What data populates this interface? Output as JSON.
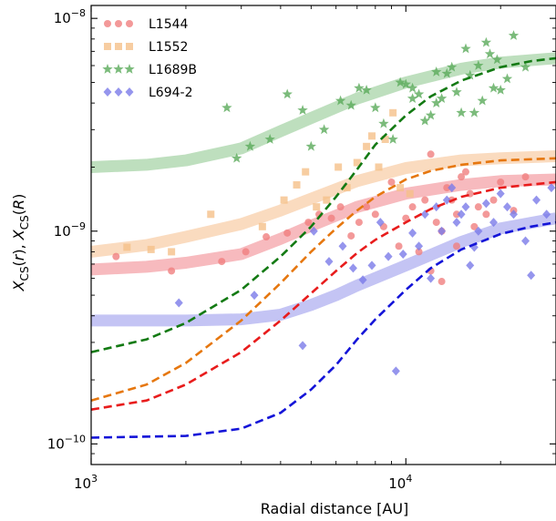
{
  "chart_data": {
    "type": "scatter",
    "xlabel": "Radial distance [AU]",
    "ylabel": "X_CS(r), X_CS(R)",
    "xscale": "log",
    "yscale": "log",
    "xlim": [
      1000,
      30000
    ],
    "ylim": [
      8e-11,
      1.15e-08
    ],
    "xticks": [
      {
        "value": 1000,
        "base": "10",
        "exp": "3"
      },
      {
        "value": 10000,
        "base": "10",
        "exp": "4"
      }
    ],
    "yticks": [
      {
        "value": 1e-10,
        "base": "10",
        "exp": "−10"
      },
      {
        "value": 1e-09,
        "base": "10",
        "exp": "−9"
      },
      {
        "value": 1e-08,
        "base": "10",
        "exp": "−8"
      }
    ],
    "grid": false,
    "legend_position": "top-left",
    "series": [
      {
        "name": "L1544",
        "color": "#f08080",
        "marker": "circle",
        "points": [
          [
            1200,
            7.6e-10
          ],
          [
            1800,
            6.5e-10
          ],
          [
            2600,
            7.2e-10
          ],
          [
            3100,
            8e-10
          ],
          [
            3600,
            9.4e-10
          ],
          [
            4200,
            9.8e-10
          ],
          [
            4900,
            1.1e-09
          ],
          [
            5300,
            1.2e-09
          ],
          [
            5800,
            1.15e-09
          ],
          [
            6200,
            1.3e-09
          ],
          [
            6700,
            9.5e-10
          ],
          [
            7100,
            1.1e-09
          ],
          [
            7500,
            1.3e-09
          ],
          [
            8000,
            1.2e-09
          ],
          [
            8500,
            1.05e-09
          ],
          [
            9000,
            1.7e-09
          ],
          [
            9500,
            8.5e-10
          ],
          [
            10000,
            1.15e-09
          ],
          [
            10500,
            1.3e-09
          ],
          [
            11000,
            8e-10
          ],
          [
            11500,
            1.4e-09
          ],
          [
            12000,
            2.3e-09
          ],
          [
            12500,
            1.1e-09
          ],
          [
            13000,
            1e-09
          ],
          [
            13500,
            1.6e-09
          ],
          [
            14000,
            1.4e-09
          ],
          [
            14500,
            8.5e-10
          ],
          [
            15000,
            1.8e-09
          ],
          [
            15500,
            1.9e-09
          ],
          [
            16000,
            1.5e-09
          ],
          [
            17000,
            1.3e-09
          ],
          [
            18000,
            1.2e-09
          ],
          [
            19000,
            1.4e-09
          ],
          [
            20000,
            1.7e-09
          ],
          [
            22000,
            1.25e-09
          ],
          [
            13000,
            5.8e-10
          ],
          [
            24000,
            1.8e-09
          ],
          [
            12000,
            6.5e-10
          ],
          [
            14500,
            1.2e-09
          ],
          [
            16500,
            1.05e-09
          ]
        ]
      },
      {
        "name": "L1552",
        "color": "#f5c08a",
        "marker": "square",
        "points": [
          [
            1300,
            8.4e-10
          ],
          [
            1550,
            8.2e-10
          ],
          [
            1800,
            8e-10
          ],
          [
            2400,
            1.2e-09
          ],
          [
            3500,
            1.05e-09
          ],
          [
            4100,
            1.4e-09
          ],
          [
            4500,
            1.65e-09
          ],
          [
            4800,
            1.9e-09
          ],
          [
            5200,
            1.3e-09
          ],
          [
            5600,
            1.4e-09
          ],
          [
            6100,
            2e-09
          ],
          [
            6500,
            1.6e-09
          ],
          [
            7000,
            2.1e-09
          ],
          [
            7500,
            2.5e-09
          ],
          [
            7800,
            2.8e-09
          ],
          [
            8200,
            2e-09
          ],
          [
            8600,
            2.7e-09
          ],
          [
            9100,
            3.6e-09
          ],
          [
            9600,
            1.6e-09
          ],
          [
            10300,
            1.5e-09
          ]
        ]
      },
      {
        "name": "L1689B",
        "color": "#5aaa5a",
        "marker": "star",
        "points": [
          [
            2700,
            3.8e-09
          ],
          [
            2900,
            2.2e-09
          ],
          [
            3200,
            2.5e-09
          ],
          [
            3700,
            2.7e-09
          ],
          [
            4200,
            4.4e-09
          ],
          [
            4700,
            3.7e-09
          ],
          [
            5000,
            2.5e-09
          ],
          [
            5500,
            3e-09
          ],
          [
            6200,
            4.1e-09
          ],
          [
            6700,
            3.9e-09
          ],
          [
            7100,
            4.7e-09
          ],
          [
            7500,
            4.6e-09
          ],
          [
            8000,
            3.8e-09
          ],
          [
            8500,
            3.2e-09
          ],
          [
            9100,
            2.7e-09
          ],
          [
            9600,
            5e-09
          ],
          [
            10000,
            4.9e-09
          ],
          [
            10500,
            4.7e-09
          ],
          [
            11000,
            4.4e-09
          ],
          [
            11500,
            3.3e-09
          ],
          [
            12000,
            3.5e-09
          ],
          [
            12500,
            4e-09
          ],
          [
            13000,
            4.2e-09
          ],
          [
            13500,
            5.5e-09
          ],
          [
            14000,
            5.9e-09
          ],
          [
            14500,
            4.5e-09
          ],
          [
            15000,
            3.6e-09
          ],
          [
            15500,
            7.2e-09
          ],
          [
            16000,
            5.4e-09
          ],
          [
            16500,
            3.6e-09
          ],
          [
            17000,
            6e-09
          ],
          [
            17500,
            4.1e-09
          ],
          [
            18000,
            7.7e-09
          ],
          [
            18500,
            6.8e-09
          ],
          [
            19000,
            4.7e-09
          ],
          [
            19500,
            6.4e-09
          ],
          [
            20000,
            4.6e-09
          ],
          [
            21000,
            5.2e-09
          ],
          [
            22000,
            8.3e-09
          ],
          [
            24000,
            5.9e-09
          ],
          [
            10500,
            4.2e-09
          ],
          [
            12500,
            5.6e-09
          ]
        ]
      },
      {
        "name": "L694-2",
        "color": "#7b7be8",
        "marker": "diamond",
        "points": [
          [
            1900,
            4.6e-10
          ],
          [
            3300,
            5e-10
          ],
          [
            4700,
            2.9e-10
          ],
          [
            5100,
            1e-09
          ],
          [
            5700,
            7.2e-10
          ],
          [
            6300,
            8.5e-10
          ],
          [
            6800,
            6.7e-10
          ],
          [
            7300,
            5.9e-10
          ],
          [
            7800,
            6.9e-10
          ],
          [
            8300,
            1.1e-09
          ],
          [
            8800,
            7.6e-10
          ],
          [
            9300,
            2.2e-10
          ],
          [
            9800,
            7.8e-10
          ],
          [
            10500,
            9.8e-10
          ],
          [
            11000,
            8.5e-10
          ],
          [
            11500,
            1.2e-09
          ],
          [
            12000,
            6e-10
          ],
          [
            12500,
            1.3e-09
          ],
          [
            13000,
            1e-09
          ],
          [
            13500,
            1.4e-09
          ],
          [
            14000,
            1.6e-09
          ],
          [
            14500,
            1.1e-09
          ],
          [
            15000,
            1.2e-09
          ],
          [
            15500,
            1.3e-09
          ],
          [
            16000,
            6.9e-10
          ],
          [
            16500,
            8.4e-10
          ],
          [
            17000,
            1e-09
          ],
          [
            18000,
            1.35e-09
          ],
          [
            19000,
            1.1e-09
          ],
          [
            20000,
            1.5e-09
          ],
          [
            21000,
            1.3e-09
          ],
          [
            22000,
            1.2e-09
          ],
          [
            24000,
            9e-10
          ],
          [
            26000,
            1.4e-09
          ],
          [
            28000,
            1.2e-09
          ],
          [
            29000,
            1.6e-09
          ],
          [
            25000,
            6.2e-10
          ]
        ]
      }
    ],
    "bands": [
      {
        "series": "L1544",
        "color": "#f4a3a8",
        "points": [
          [
            1000,
            6.6e-10
          ],
          [
            1500,
            6.8e-10
          ],
          [
            2000,
            7.1e-10
          ],
          [
            3000,
            7.8e-10
          ],
          [
            4000,
            9.2e-10
          ],
          [
            5000,
            1.06e-09
          ],
          [
            7000,
            1.3e-09
          ],
          [
            10000,
            1.5e-09
          ],
          [
            15000,
            1.65e-09
          ],
          [
            20000,
            1.72e-09
          ],
          [
            30000,
            1.75e-09
          ]
        ]
      },
      {
        "series": "L1552",
        "color": "#f8cfaa",
        "points": [
          [
            1000,
            8e-10
          ],
          [
            1500,
            8.6e-10
          ],
          [
            2000,
            9.4e-10
          ],
          [
            3000,
            1.08e-09
          ],
          [
            4000,
            1.25e-09
          ],
          [
            5000,
            1.42e-09
          ],
          [
            7000,
            1.72e-09
          ],
          [
            10000,
            1.98e-09
          ],
          [
            15000,
            2.15e-09
          ],
          [
            20000,
            2.2e-09
          ],
          [
            30000,
            2.25e-09
          ]
        ]
      },
      {
        "series": "L1689B",
        "color": "#a8d4a8",
        "points": [
          [
            1000,
            2e-09
          ],
          [
            1500,
            2.05e-09
          ],
          [
            2000,
            2.15e-09
          ],
          [
            3000,
            2.45e-09
          ],
          [
            4000,
            2.95e-09
          ],
          [
            5000,
            3.4e-09
          ],
          [
            7000,
            4.2e-09
          ],
          [
            10000,
            5e-09
          ],
          [
            15000,
            5.8e-09
          ],
          [
            20000,
            6.2e-09
          ],
          [
            30000,
            6.5e-09
          ]
        ]
      },
      {
        "series": "L694-2",
        "color": "#b0b0f0",
        "points": [
          [
            1000,
            3.8e-10
          ],
          [
            2000,
            3.8e-10
          ],
          [
            3000,
            3.85e-10
          ],
          [
            4000,
            4.05e-10
          ],
          [
            5000,
            4.5e-10
          ],
          [
            6000,
            5e-10
          ],
          [
            7000,
            5.55e-10
          ],
          [
            10000,
            6.9e-10
          ],
          [
            15000,
            8.9e-10
          ],
          [
            20000,
            1.03e-09
          ],
          [
            30000,
            1.15e-09
          ]
        ]
      }
    ],
    "dashed_lines": [
      {
        "series": "L1689B",
        "color": "#137a13",
        "points": [
          [
            1000,
            2.7e-10
          ],
          [
            1500,
            3.1e-10
          ],
          [
            2000,
            3.7e-10
          ],
          [
            3000,
            5.3e-10
          ],
          [
            4000,
            7.6e-10
          ],
          [
            5000,
            1.05e-09
          ],
          [
            6000,
            1.45e-09
          ],
          [
            7000,
            1.95e-09
          ],
          [
            8000,
            2.55e-09
          ],
          [
            10000,
            3.5e-09
          ],
          [
            12000,
            4.3e-09
          ],
          [
            15000,
            5.1e-09
          ],
          [
            20000,
            5.9e-09
          ],
          [
            25000,
            6.3e-09
          ],
          [
            30000,
            6.5e-09
          ]
        ]
      },
      {
        "series": "L1552",
        "color": "#e6770f",
        "points": [
          [
            1000,
            1.6e-10
          ],
          [
            1500,
            1.9e-10
          ],
          [
            2000,
            2.4e-10
          ],
          [
            3000,
            3.8e-10
          ],
          [
            4000,
            5.7e-10
          ],
          [
            5000,
            8e-10
          ],
          [
            6000,
            1.03e-09
          ],
          [
            7000,
            1.25e-09
          ],
          [
            8000,
            1.45e-09
          ],
          [
            10000,
            1.75e-09
          ],
          [
            12000,
            1.92e-09
          ],
          [
            15000,
            2.05e-09
          ],
          [
            20000,
            2.15e-09
          ],
          [
            30000,
            2.2e-09
          ]
        ]
      },
      {
        "series": "L1544",
        "color": "#e81c1c",
        "points": [
          [
            1000,
            1.45e-10
          ],
          [
            1500,
            1.6e-10
          ],
          [
            2000,
            1.9e-10
          ],
          [
            3000,
            2.7e-10
          ],
          [
            4000,
            3.8e-10
          ],
          [
            5000,
            5.1e-10
          ],
          [
            6000,
            6.5e-10
          ],
          [
            7000,
            7.9e-10
          ],
          [
            8000,
            9.1e-10
          ],
          [
            10000,
            1.1e-09
          ],
          [
            12000,
            1.27e-09
          ],
          [
            15000,
            1.45e-09
          ],
          [
            20000,
            1.6e-09
          ],
          [
            30000,
            1.7e-09
          ]
        ]
      },
      {
        "series": "L694-2",
        "color": "#1414d8",
        "points": [
          [
            1000,
            1.07e-10
          ],
          [
            2000,
            1.09e-10
          ],
          [
            3000,
            1.18e-10
          ],
          [
            4000,
            1.4e-10
          ],
          [
            5000,
            1.8e-10
          ],
          [
            6000,
            2.35e-10
          ],
          [
            7000,
            3.1e-10
          ],
          [
            8000,
            3.85e-10
          ],
          [
            10000,
            5.3e-10
          ],
          [
            12000,
            6.7e-10
          ],
          [
            15000,
            8.2e-10
          ],
          [
            20000,
            9.7e-10
          ],
          [
            25000,
            1.05e-09
          ],
          [
            30000,
            1.1e-09
          ]
        ]
      }
    ]
  }
}
